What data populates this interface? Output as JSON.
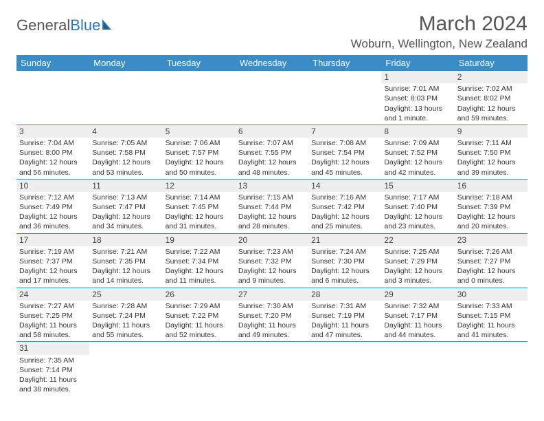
{
  "header": {
    "logo_general": "General",
    "logo_blue": "Blue",
    "month_title": "March 2024",
    "location": "Woburn, Wellington, New Zealand"
  },
  "style": {
    "header_bg": "#3b8bc5",
    "header_text": "#ffffff",
    "row_border": "#3b8bc5",
    "date_bg": "#eeeeee",
    "body_color": "#333333"
  },
  "day_names": [
    "Sunday",
    "Monday",
    "Tuesday",
    "Wednesday",
    "Thursday",
    "Friday",
    "Saturday"
  ],
  "weeks": [
    [
      null,
      null,
      null,
      null,
      null,
      {
        "n": "1",
        "sr": "Sunrise: 7:01 AM",
        "ss": "Sunset: 8:03 PM",
        "dl1": "Daylight: 13 hours",
        "dl2": "and 1 minute."
      },
      {
        "n": "2",
        "sr": "Sunrise: 7:02 AM",
        "ss": "Sunset: 8:02 PM",
        "dl1": "Daylight: 12 hours",
        "dl2": "and 59 minutes."
      }
    ],
    [
      {
        "n": "3",
        "sr": "Sunrise: 7:04 AM",
        "ss": "Sunset: 8:00 PM",
        "dl1": "Daylight: 12 hours",
        "dl2": "and 56 minutes."
      },
      {
        "n": "4",
        "sr": "Sunrise: 7:05 AM",
        "ss": "Sunset: 7:58 PM",
        "dl1": "Daylight: 12 hours",
        "dl2": "and 53 minutes."
      },
      {
        "n": "5",
        "sr": "Sunrise: 7:06 AM",
        "ss": "Sunset: 7:57 PM",
        "dl1": "Daylight: 12 hours",
        "dl2": "and 50 minutes."
      },
      {
        "n": "6",
        "sr": "Sunrise: 7:07 AM",
        "ss": "Sunset: 7:55 PM",
        "dl1": "Daylight: 12 hours",
        "dl2": "and 48 minutes."
      },
      {
        "n": "7",
        "sr": "Sunrise: 7:08 AM",
        "ss": "Sunset: 7:54 PM",
        "dl1": "Daylight: 12 hours",
        "dl2": "and 45 minutes."
      },
      {
        "n": "8",
        "sr": "Sunrise: 7:09 AM",
        "ss": "Sunset: 7:52 PM",
        "dl1": "Daylight: 12 hours",
        "dl2": "and 42 minutes."
      },
      {
        "n": "9",
        "sr": "Sunrise: 7:11 AM",
        "ss": "Sunset: 7:50 PM",
        "dl1": "Daylight: 12 hours",
        "dl2": "and 39 minutes."
      }
    ],
    [
      {
        "n": "10",
        "sr": "Sunrise: 7:12 AM",
        "ss": "Sunset: 7:49 PM",
        "dl1": "Daylight: 12 hours",
        "dl2": "and 36 minutes."
      },
      {
        "n": "11",
        "sr": "Sunrise: 7:13 AM",
        "ss": "Sunset: 7:47 PM",
        "dl1": "Daylight: 12 hours",
        "dl2": "and 34 minutes."
      },
      {
        "n": "12",
        "sr": "Sunrise: 7:14 AM",
        "ss": "Sunset: 7:45 PM",
        "dl1": "Daylight: 12 hours",
        "dl2": "and 31 minutes."
      },
      {
        "n": "13",
        "sr": "Sunrise: 7:15 AM",
        "ss": "Sunset: 7:44 PM",
        "dl1": "Daylight: 12 hours",
        "dl2": "and 28 minutes."
      },
      {
        "n": "14",
        "sr": "Sunrise: 7:16 AM",
        "ss": "Sunset: 7:42 PM",
        "dl1": "Daylight: 12 hours",
        "dl2": "and 25 minutes."
      },
      {
        "n": "15",
        "sr": "Sunrise: 7:17 AM",
        "ss": "Sunset: 7:40 PM",
        "dl1": "Daylight: 12 hours",
        "dl2": "and 23 minutes."
      },
      {
        "n": "16",
        "sr": "Sunrise: 7:18 AM",
        "ss": "Sunset: 7:39 PM",
        "dl1": "Daylight: 12 hours",
        "dl2": "and 20 minutes."
      }
    ],
    [
      {
        "n": "17",
        "sr": "Sunrise: 7:19 AM",
        "ss": "Sunset: 7:37 PM",
        "dl1": "Daylight: 12 hours",
        "dl2": "and 17 minutes."
      },
      {
        "n": "18",
        "sr": "Sunrise: 7:21 AM",
        "ss": "Sunset: 7:35 PM",
        "dl1": "Daylight: 12 hours",
        "dl2": "and 14 minutes."
      },
      {
        "n": "19",
        "sr": "Sunrise: 7:22 AM",
        "ss": "Sunset: 7:34 PM",
        "dl1": "Daylight: 12 hours",
        "dl2": "and 11 minutes."
      },
      {
        "n": "20",
        "sr": "Sunrise: 7:23 AM",
        "ss": "Sunset: 7:32 PM",
        "dl1": "Daylight: 12 hours",
        "dl2": "and 9 minutes."
      },
      {
        "n": "21",
        "sr": "Sunrise: 7:24 AM",
        "ss": "Sunset: 7:30 PM",
        "dl1": "Daylight: 12 hours",
        "dl2": "and 6 minutes."
      },
      {
        "n": "22",
        "sr": "Sunrise: 7:25 AM",
        "ss": "Sunset: 7:29 PM",
        "dl1": "Daylight: 12 hours",
        "dl2": "and 3 minutes."
      },
      {
        "n": "23",
        "sr": "Sunrise: 7:26 AM",
        "ss": "Sunset: 7:27 PM",
        "dl1": "Daylight: 12 hours",
        "dl2": "and 0 minutes."
      }
    ],
    [
      {
        "n": "24",
        "sr": "Sunrise: 7:27 AM",
        "ss": "Sunset: 7:25 PM",
        "dl1": "Daylight: 11 hours",
        "dl2": "and 58 minutes."
      },
      {
        "n": "25",
        "sr": "Sunrise: 7:28 AM",
        "ss": "Sunset: 7:24 PM",
        "dl1": "Daylight: 11 hours",
        "dl2": "and 55 minutes."
      },
      {
        "n": "26",
        "sr": "Sunrise: 7:29 AM",
        "ss": "Sunset: 7:22 PM",
        "dl1": "Daylight: 11 hours",
        "dl2": "and 52 minutes."
      },
      {
        "n": "27",
        "sr": "Sunrise: 7:30 AM",
        "ss": "Sunset: 7:20 PM",
        "dl1": "Daylight: 11 hours",
        "dl2": "and 49 minutes."
      },
      {
        "n": "28",
        "sr": "Sunrise: 7:31 AM",
        "ss": "Sunset: 7:19 PM",
        "dl1": "Daylight: 11 hours",
        "dl2": "and 47 minutes."
      },
      {
        "n": "29",
        "sr": "Sunrise: 7:32 AM",
        "ss": "Sunset: 7:17 PM",
        "dl1": "Daylight: 11 hours",
        "dl2": "and 44 minutes."
      },
      {
        "n": "30",
        "sr": "Sunrise: 7:33 AM",
        "ss": "Sunset: 7:15 PM",
        "dl1": "Daylight: 11 hours",
        "dl2": "and 41 minutes."
      }
    ],
    [
      {
        "n": "31",
        "sr": "Sunrise: 7:35 AM",
        "ss": "Sunset: 7:14 PM",
        "dl1": "Daylight: 11 hours",
        "dl2": "and 38 minutes."
      },
      null,
      null,
      null,
      null,
      null,
      null
    ]
  ]
}
